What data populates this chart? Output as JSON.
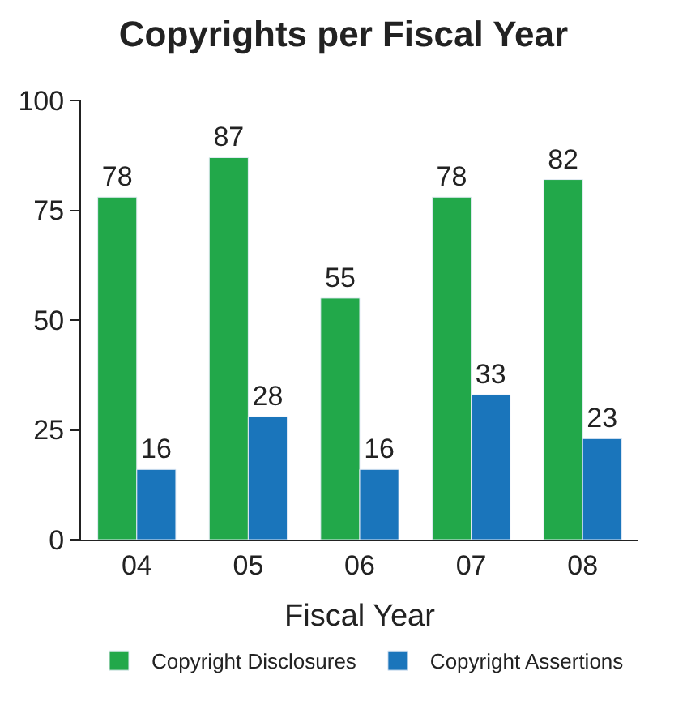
{
  "chart_data": {
    "type": "bar",
    "title": "Copyrights per Fiscal Year",
    "xlabel": "Fiscal Year",
    "categories": [
      "04",
      "05",
      "06",
      "07",
      "08"
    ],
    "series": [
      {
        "name": "Copyright Disclosures",
        "color": "#22a84a",
        "values": [
          78,
          87,
          55,
          78,
          82
        ]
      },
      {
        "name": "Copyright Assertions",
        "color": "#1a75bb",
        "values": [
          16,
          28,
          16,
          33,
          23
        ]
      }
    ],
    "ylim": [
      0,
      100
    ],
    "yticks": [
      0,
      25,
      50,
      75,
      100
    ],
    "data_labels": true,
    "legend": "bottom"
  }
}
